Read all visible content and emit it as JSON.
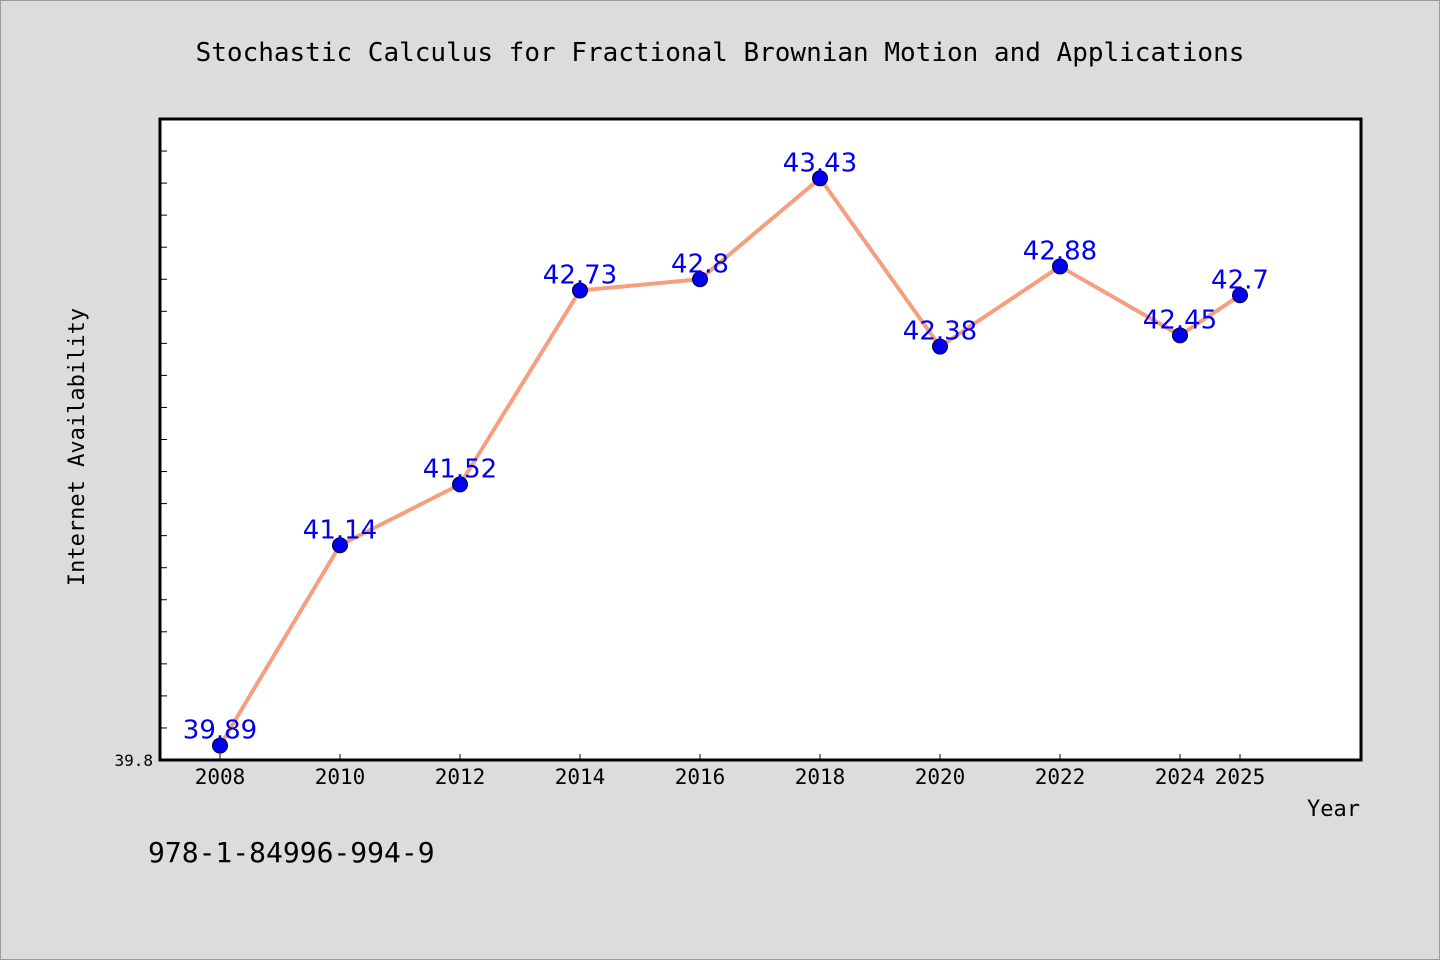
{
  "chart_data": {
    "type": "line",
    "title": "Stochastic Calculus for Fractional Brownian Motion and Applications",
    "xlabel": "Year",
    "ylabel": "Internet Availability",
    "categories": [
      "2008",
      "2010",
      "2012",
      "2014",
      "2016",
      "2018",
      "2020",
      "2022",
      "2024",
      "2025"
    ],
    "series": [
      {
        "values": [
          39.89,
          41.14,
          41.52,
          42.73,
          42.8,
          43.43,
          42.38,
          42.88,
          42.45,
          42.7
        ],
        "labels": [
          "39.89",
          "41.14",
          "41.52",
          "42.73",
          "42.8",
          "43.43",
          "42.38",
          "42.88",
          "42.45",
          "42.7"
        ]
      }
    ],
    "ylim": [
      39.8,
      43.8
    ],
    "y_tick_labels": [
      "39.8"
    ],
    "grid": false,
    "colors": {
      "line": "#f4a07f",
      "marker": "#0000ee",
      "label": "#0000ee"
    }
  },
  "footnote": "978-1-84996-994-9"
}
